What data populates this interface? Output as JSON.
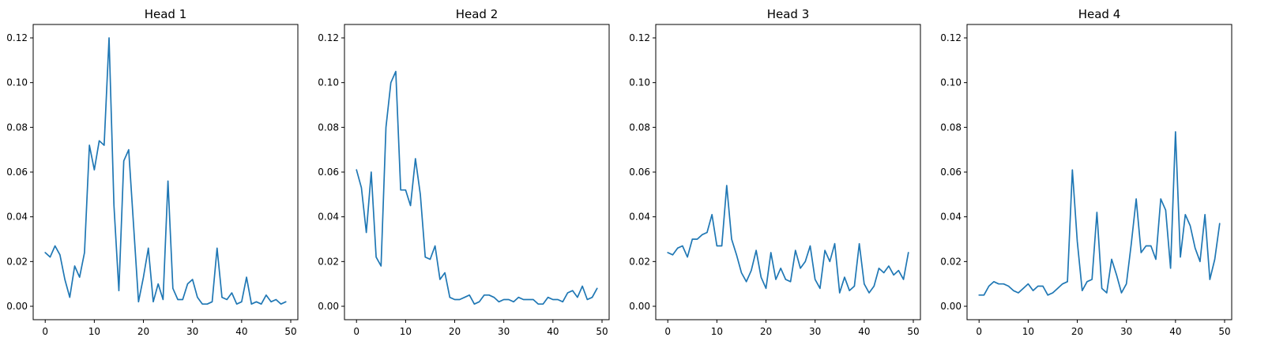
{
  "chart_data": [
    {
      "type": "line",
      "title": "Head 1",
      "xlabel": "",
      "ylabel": "",
      "xlim": [
        -2.45,
        51.45
      ],
      "ylim": [
        -0.006,
        0.126
      ],
      "xticks": [
        0,
        10,
        20,
        30,
        40,
        50
      ],
      "yticks": [
        0.0,
        0.02,
        0.04,
        0.06,
        0.08,
        0.1,
        0.12
      ],
      "ytick_labels": [
        "0.00",
        "0.02",
        "0.04",
        "0.06",
        "0.08",
        "0.10",
        "0.12"
      ],
      "grid": false,
      "color": "#1f77b4",
      "x": [
        0,
        1,
        2,
        3,
        4,
        5,
        6,
        7,
        8,
        9,
        10,
        11,
        12,
        13,
        14,
        15,
        16,
        17,
        18,
        19,
        20,
        21,
        22,
        23,
        24,
        25,
        26,
        27,
        28,
        29,
        30,
        31,
        32,
        33,
        34,
        35,
        36,
        37,
        38,
        39,
        40,
        41,
        42,
        43,
        44,
        45,
        46,
        47,
        48,
        49
      ],
      "values": [
        0.024,
        0.022,
        0.027,
        0.023,
        0.012,
        0.004,
        0.018,
        0.013,
        0.024,
        0.072,
        0.061,
        0.074,
        0.072,
        0.12,
        0.045,
        0.007,
        0.065,
        0.07,
        0.036,
        0.002,
        0.013,
        0.026,
        0.002,
        0.01,
        0.003,
        0.056,
        0.008,
        0.003,
        0.003,
        0.01,
        0.012,
        0.004,
        0.001,
        0.001,
        0.002,
        0.026,
        0.004,
        0.003,
        0.006,
        0.001,
        0.002,
        0.013,
        0.001,
        0.002,
        0.001,
        0.005,
        0.002,
        0.003,
        0.001,
        0.002
      ]
    },
    {
      "type": "line",
      "title": "Head 2",
      "xlabel": "",
      "ylabel": "",
      "xlim": [
        -2.45,
        51.45
      ],
      "ylim": [
        -0.006,
        0.126
      ],
      "xticks": [
        0,
        10,
        20,
        30,
        40,
        50
      ],
      "yticks": [
        0.0,
        0.02,
        0.04,
        0.06,
        0.08,
        0.1,
        0.12
      ],
      "ytick_labels": [
        "0.00",
        "0.02",
        "0.04",
        "0.06",
        "0.08",
        "0.10",
        "0.12"
      ],
      "grid": false,
      "color": "#1f77b4",
      "x": [
        0,
        1,
        2,
        3,
        4,
        5,
        6,
        7,
        8,
        9,
        10,
        11,
        12,
        13,
        14,
        15,
        16,
        17,
        18,
        19,
        20,
        21,
        22,
        23,
        24,
        25,
        26,
        27,
        28,
        29,
        30,
        31,
        32,
        33,
        34,
        35,
        36,
        37,
        38,
        39,
        40,
        41,
        42,
        43,
        44,
        45,
        46,
        47,
        48,
        49
      ],
      "values": [
        0.061,
        0.053,
        0.033,
        0.06,
        0.022,
        0.018,
        0.08,
        0.1,
        0.105,
        0.052,
        0.052,
        0.045,
        0.066,
        0.05,
        0.022,
        0.021,
        0.027,
        0.012,
        0.015,
        0.004,
        0.003,
        0.003,
        0.004,
        0.005,
        0.001,
        0.002,
        0.005,
        0.005,
        0.004,
        0.002,
        0.003,
        0.003,
        0.002,
        0.004,
        0.003,
        0.003,
        0.003,
        0.001,
        0.001,
        0.004,
        0.003,
        0.003,
        0.002,
        0.006,
        0.007,
        0.004,
        0.009,
        0.003,
        0.004,
        0.008
      ]
    },
    {
      "type": "line",
      "title": "Head 3",
      "xlabel": "",
      "ylabel": "",
      "xlim": [
        -2.45,
        51.45
      ],
      "ylim": [
        -0.006,
        0.126
      ],
      "xticks": [
        0,
        10,
        20,
        30,
        40,
        50
      ],
      "yticks": [
        0.0,
        0.02,
        0.04,
        0.06,
        0.08,
        0.1,
        0.12
      ],
      "ytick_labels": [
        "0.00",
        "0.02",
        "0.04",
        "0.06",
        "0.08",
        "0.10",
        "0.12"
      ],
      "grid": false,
      "color": "#1f77b4",
      "x": [
        0,
        1,
        2,
        3,
        4,
        5,
        6,
        7,
        8,
        9,
        10,
        11,
        12,
        13,
        14,
        15,
        16,
        17,
        18,
        19,
        20,
        21,
        22,
        23,
        24,
        25,
        26,
        27,
        28,
        29,
        30,
        31,
        32,
        33,
        34,
        35,
        36,
        37,
        38,
        39,
        40,
        41,
        42,
        43,
        44,
        45,
        46,
        47,
        48,
        49
      ],
      "values": [
        0.024,
        0.023,
        0.026,
        0.027,
        0.022,
        0.03,
        0.03,
        0.032,
        0.033,
        0.041,
        0.027,
        0.027,
        0.054,
        0.03,
        0.023,
        0.015,
        0.011,
        0.016,
        0.025,
        0.013,
        0.008,
        0.024,
        0.012,
        0.017,
        0.012,
        0.011,
        0.025,
        0.017,
        0.02,
        0.027,
        0.012,
        0.008,
        0.025,
        0.02,
        0.028,
        0.006,
        0.013,
        0.007,
        0.009,
        0.028,
        0.01,
        0.006,
        0.009,
        0.017,
        0.015,
        0.018,
        0.014,
        0.016,
        0.012,
        0.024
      ]
    },
    {
      "type": "line",
      "title": "Head 4",
      "xlabel": "",
      "ylabel": "",
      "xlim": [
        -2.45,
        51.45
      ],
      "ylim": [
        -0.006,
        0.126
      ],
      "xticks": [
        0,
        10,
        20,
        30,
        40,
        50
      ],
      "yticks": [
        0.0,
        0.02,
        0.04,
        0.06,
        0.08,
        0.1,
        0.12
      ],
      "ytick_labels": [
        "0.00",
        "0.02",
        "0.04",
        "0.06",
        "0.08",
        "0.10",
        "0.12"
      ],
      "grid": false,
      "color": "#1f77b4",
      "x": [
        0,
        1,
        2,
        3,
        4,
        5,
        6,
        7,
        8,
        9,
        10,
        11,
        12,
        13,
        14,
        15,
        16,
        17,
        18,
        19,
        20,
        21,
        22,
        23,
        24,
        25,
        26,
        27,
        28,
        29,
        30,
        31,
        32,
        33,
        34,
        35,
        36,
        37,
        38,
        39,
        40,
        41,
        42,
        43,
        44,
        45,
        46,
        47,
        48,
        49
      ],
      "values": [
        0.005,
        0.005,
        0.009,
        0.011,
        0.01,
        0.01,
        0.009,
        0.007,
        0.006,
        0.008,
        0.01,
        0.007,
        0.009,
        0.009,
        0.005,
        0.006,
        0.008,
        0.01,
        0.011,
        0.061,
        0.029,
        0.007,
        0.011,
        0.012,
        0.042,
        0.008,
        0.006,
        0.021,
        0.014,
        0.006,
        0.01,
        0.028,
        0.048,
        0.024,
        0.027,
        0.027,
        0.021,
        0.048,
        0.043,
        0.017,
        0.078,
        0.022,
        0.041,
        0.036,
        0.026,
        0.02,
        0.041,
        0.012,
        0.021,
        0.037
      ]
    }
  ]
}
